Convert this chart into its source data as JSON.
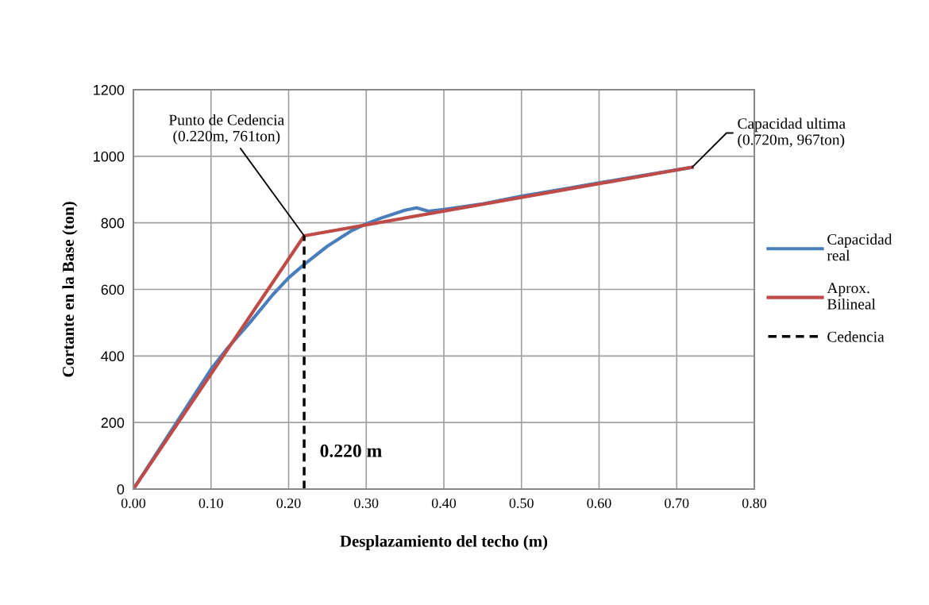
{
  "chart_data": {
    "type": "line",
    "xlabel": "Desplazamiento del techo (m)",
    "ylabel": "Cortante en la Base (ton)",
    "xlim": [
      0,
      0.8
    ],
    "xticks": [
      {
        "value": 0,
        "label": "0.00"
      },
      {
        "value": 0.1,
        "label": "0.10"
      },
      {
        "value": 0.2,
        "label": "0.20"
      },
      {
        "value": 0.3,
        "label": "0.30"
      },
      {
        "value": 0.4,
        "label": "0.40"
      },
      {
        "value": 0.5,
        "label": "0.50"
      },
      {
        "value": 0.6,
        "label": "0.60"
      },
      {
        "value": 0.7,
        "label": "0.70"
      },
      {
        "value": 0.8,
        "label": "0.80"
      }
    ],
    "ylim": [
      0,
      1200
    ],
    "yticks": [
      0,
      200,
      400,
      600,
      800,
      1000,
      1200
    ],
    "grid": true,
    "legend": "right",
    "series": [
      {
        "name": "Capacidad real",
        "color": "#4a7ebb",
        "line_style": "solid",
        "x": [
          0,
          0.05,
          0.1,
          0.12,
          0.15,
          0.18,
          0.2,
          0.22,
          0.25,
          0.28,
          0.3,
          0.32,
          0.35,
          0.365,
          0.38,
          0.4,
          0.45,
          0.5,
          0.55,
          0.6,
          0.65,
          0.72
        ],
        "values": [
          0,
          180,
          360,
          420,
          500,
          585,
          635,
          675,
          730,
          775,
          797,
          815,
          838,
          845,
          835,
          840,
          857,
          880,
          900,
          920,
          940,
          967
        ]
      },
      {
        "name": "Aprox. Bilineal",
        "color": "#be4b48",
        "line_style": "solid",
        "x": [
          0,
          0.22,
          0.72
        ],
        "values": [
          0,
          761,
          967
        ]
      },
      {
        "name": "Cedencia",
        "color": "#000000",
        "line_style": "dashed",
        "x": [
          0.22,
          0.22
        ],
        "values": [
          0,
          761
        ]
      }
    ],
    "annotations": [
      {
        "text": "Punto de Cedencia\n(0.220m, 761ton)",
        "x": 0.22,
        "y": 761
      },
      {
        "text": "Capacidad ultima\n(0.720m, 967ton)",
        "x": 0.72,
        "y": 967
      },
      "0.220 m"
    ]
  }
}
